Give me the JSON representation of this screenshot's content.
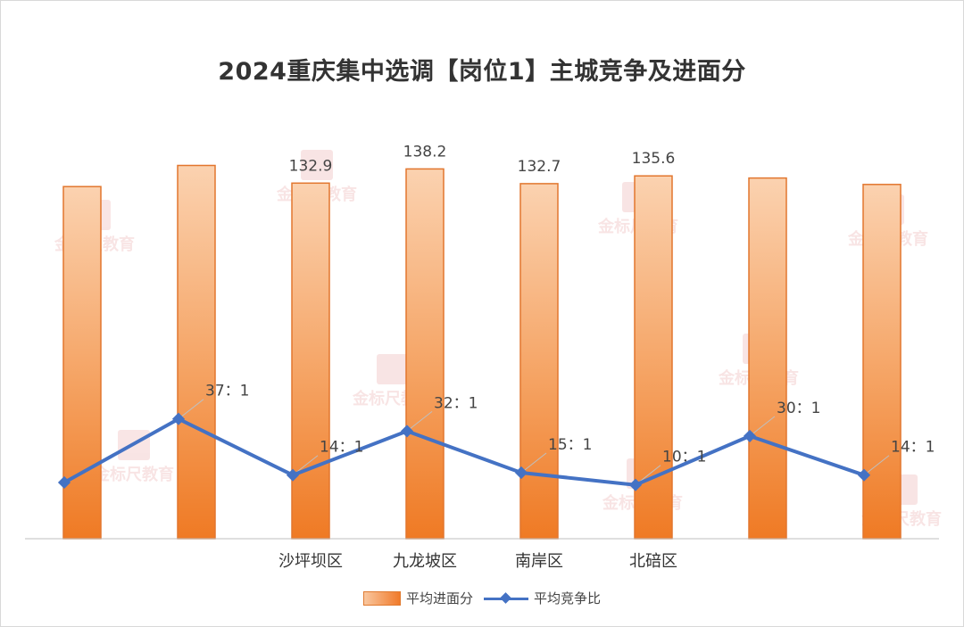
{
  "chart_data": {
    "type": "bar+line",
    "title": "2024重庆集中选调【岗位1】主城竞争及进面分",
    "categories": [
      "",
      "",
      "沙坪坝区",
      "九龙坡区",
      "南岸区",
      "北碚区",
      "",
      ""
    ],
    "series": [
      {
        "name": "平均进面分",
        "type": "bar",
        "values": [
          131.6,
          139.5,
          132.9,
          138.2,
          132.7,
          135.6,
          134.8,
          132.4
        ],
        "labels": [
          "",
          "",
          "132.9",
          "138.2",
          "132.7",
          "135.6",
          "",
          ""
        ]
      },
      {
        "name": "平均竞争比",
        "type": "line",
        "values": [
          11,
          37,
          14,
          32,
          15,
          10,
          30,
          14
        ],
        "labels": [
          "",
          "37：1",
          "14：1",
          "32：1",
          "15：1",
          "10：1",
          "30：1",
          "14：1"
        ]
      }
    ],
    "bar_axis": {
      "min": 0,
      "max": 148
    },
    "line_axis": {
      "min": -12,
      "max": 150
    },
    "legend_position": "bottom",
    "grid": false
  },
  "watermark": "金标尺教育",
  "colors": {
    "bar_light": "#fbd2b0",
    "bar_dark": "#ef7a24",
    "bar_border": "#e2762e",
    "line": "#4472c4",
    "leader": "#bfbfbf",
    "watermark": "#e8a0a0"
  }
}
